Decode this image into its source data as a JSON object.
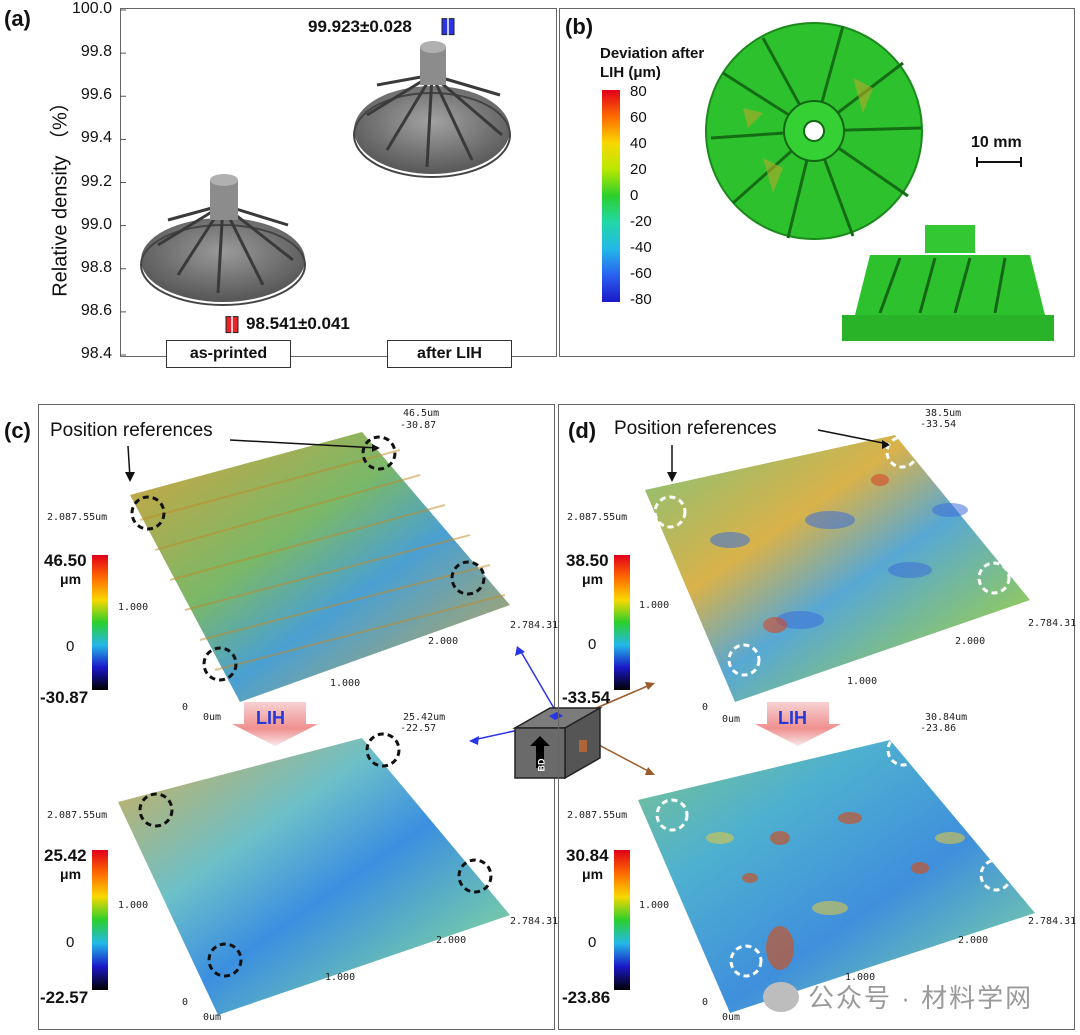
{
  "panels": {
    "a": "(a)",
    "b": "(b)",
    "c": "(c)",
    "d": "(d)"
  },
  "panel_a": {
    "chart_data": {
      "type": "bar",
      "categories": [
        "as-printed",
        "after LIH"
      ],
      "values": [
        98.541,
        99.923
      ],
      "errors": [
        0.041,
        0.028
      ],
      "ylabel": "Relative density （%）",
      "ylim": [
        98.4,
        100.0
      ],
      "yticks": [
        "100.0",
        "99.8",
        "99.6",
        "99.4",
        "99.2",
        "99.0",
        "98.8",
        "98.6",
        "98.4"
      ],
      "annotations": [
        "98.541±0.041",
        "99.923±0.028"
      ],
      "annotation_colors": [
        "#e8232a",
        "#2a35e8"
      ]
    }
  },
  "panel_b": {
    "colorbar_title": "Deviation after LIH (μm)",
    "colorbar_ticks": [
      "80",
      "60",
      "40",
      "20",
      "0",
      "-20",
      "-40",
      "-60",
      "-80"
    ],
    "scale_bar": "10 mm"
  },
  "panel_c": {
    "position_references": "Position references",
    "lih": "LIH",
    "top": {
      "max": "46.50",
      "min": "-30.87",
      "unit": "μm",
      "mid": "0",
      "corner_top": "46.5um",
      "corner_top2": "-30.87",
      "y_label": "2.087.55um",
      "mid_tick": "1.000",
      "x_mid": "2.000",
      "x_end": "2.784.31",
      "x_small": "1.000",
      "zero": "0",
      "origin": "0um"
    },
    "bottom": {
      "max": "25.42",
      "min": "-22.57",
      "unit": "μm",
      "mid": "0",
      "corner_top": "25.42um",
      "corner_top2": "-22.57",
      "y_label": "2.087.55um",
      "mid_tick": "1.000",
      "x_mid": "2.000",
      "x_end": "2.784.31",
      "x_small": "1.000",
      "zero": "0",
      "origin": "0um"
    }
  },
  "panel_d": {
    "position_references": "Position references",
    "lih": "LIH",
    "top": {
      "max": "38.50",
      "min": "-33.54",
      "unit": "μm",
      "mid": "0",
      "corner_top": "38.5um",
      "corner_top2": "-33.54",
      "y_label": "2.087.55um",
      "mid_tick": "1.000",
      "x_mid": "2.000",
      "x_end": "2.784.31",
      "x_small": "1.000",
      "zero": "0",
      "origin": "0um"
    },
    "bottom": {
      "max": "30.84",
      "min": "-23.86",
      "unit": "μm",
      "mid": "0",
      "corner_top": "30.84um",
      "corner_top2": "-23.86",
      "y_label": "2.087.55um",
      "mid_tick": "1.000",
      "x_mid": "2.000",
      "x_end": "2.784.31",
      "x_small": "1.000",
      "zero": "0",
      "origin": "0um"
    }
  },
  "center_block": {
    "label": "BD"
  },
  "watermark": "公众号 · 材料学网"
}
